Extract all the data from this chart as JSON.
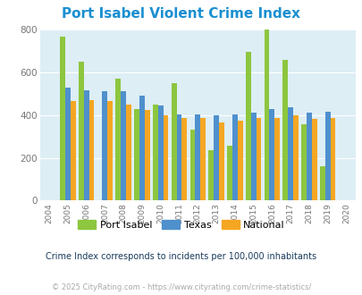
{
  "title": "Port Isabel Violent Crime Index",
  "years": [
    2004,
    2005,
    2006,
    2007,
    2008,
    2009,
    2010,
    2011,
    2012,
    2013,
    2014,
    2015,
    2016,
    2017,
    2018,
    2019,
    2020
  ],
  "port_isabel": [
    null,
    765,
    650,
    null,
    570,
    430,
    450,
    550,
    330,
    235,
    257,
    695,
    800,
    657,
    355,
    160,
    null
  ],
  "texas": [
    null,
    530,
    515,
    510,
    510,
    490,
    445,
    405,
    405,
    400,
    405,
    410,
    430,
    435,
    410,
    415,
    null
  ],
  "national": [
    null,
    465,
    470,
    465,
    450,
    425,
    400,
    388,
    388,
    367,
    375,
    385,
    385,
    400,
    383,
    385,
    null
  ],
  "color_pi": "#8dc63f",
  "color_tx": "#4f90cd",
  "color_na": "#f5a623",
  "bg_color": "#ddeef5",
  "ylim": [
    0,
    800
  ],
  "yticks": [
    0,
    200,
    400,
    600,
    800
  ],
  "bar_width": 0.28,
  "subtitle": "Crime Index corresponds to incidents per 100,000 inhabitants",
  "footer": "© 2025 CityRating.com - https://www.cityrating.com/crime-statistics/",
  "legend_labels": [
    "Port Isabel",
    "Texas",
    "National"
  ],
  "title_color": "#1a8fd1",
  "subtitle_color": "#1a3a5c",
  "footer_color": "#aaaaaa",
  "footer_link_color": "#4f90cd"
}
